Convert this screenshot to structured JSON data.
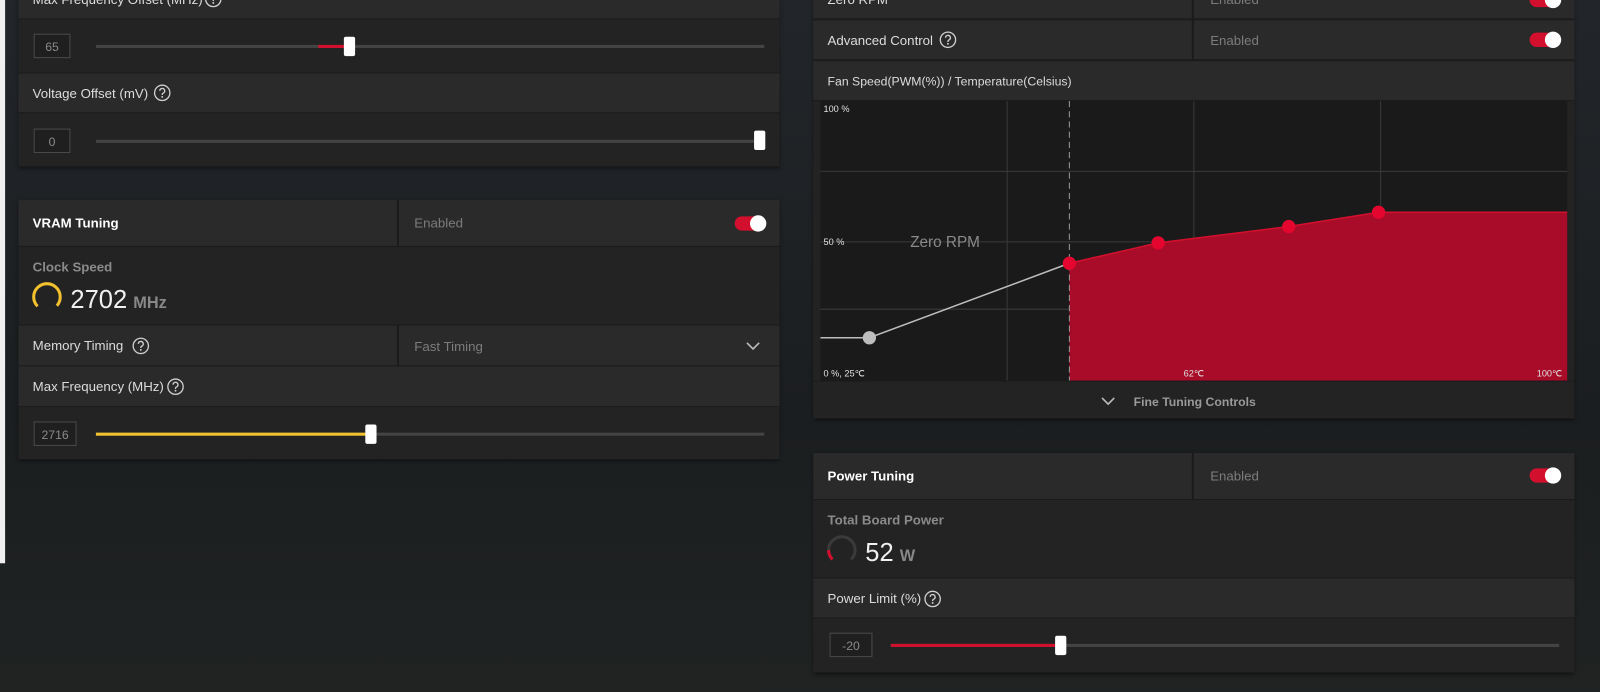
{
  "left": {
    "max_frequency_offset": {
      "label": "Max Frequency Offset (MHz)",
      "value": 65
    },
    "voltage_offset": {
      "label": "Voltage Offset (mV)",
      "value": 0
    },
    "vram_tuning": {
      "title": "VRAM Tuning",
      "status": "Enabled",
      "clock_speed": {
        "label": "Clock Speed",
        "value": 2702,
        "unit": "MHz"
      },
      "memory_timing": {
        "label": "Memory Timing",
        "value": "Fast Timing"
      },
      "max_frequency": {
        "label": "Max Frequency (MHz)",
        "value": 2716
      }
    }
  },
  "right": {
    "zero_rpm": {
      "label": "Zero RPM",
      "status": "Enabled"
    },
    "advanced_control": {
      "label": "Advanced Control",
      "status": "Enabled"
    },
    "fan_chart": {
      "title": "Fan Speed(PWM(%)) / Temperature(Celsius)",
      "y_top": "100 %",
      "y_mid": "50 %",
      "origin": "0 %, 25℃",
      "x_mid": "62℃",
      "x_end": "100℃",
      "zone": "Zero RPM"
    },
    "fine_tuning": "Fine Tuning Controls",
    "power_tuning": {
      "title": "Power Tuning",
      "status": "Enabled",
      "total_board_power": {
        "label": "Total Board Power",
        "value": 52,
        "unit": "W"
      },
      "power_limit": {
        "label": "Power Limit (%)",
        "value": -20
      }
    }
  }
}
